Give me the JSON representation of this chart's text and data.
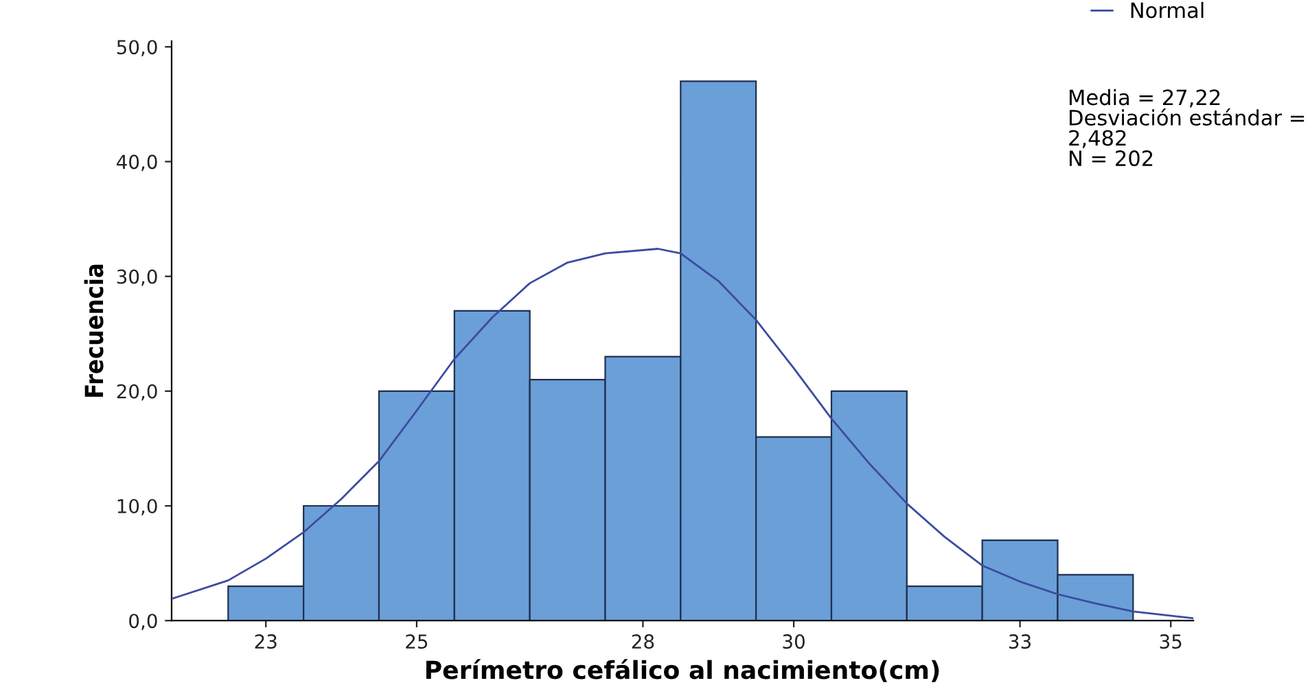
{
  "chart_data": {
    "type": "histogram",
    "xlabel": "Perímetro cefálico al nacimiento(cm)",
    "ylabel": "Frecuencia",
    "bins": [
      22.5,
      23.5,
      24.5,
      25.5,
      26.5,
      27.5,
      28.5,
      29.5,
      30.5,
      31.5,
      32.5,
      33.5,
      34.5
    ],
    "values": [
      3,
      10,
      20,
      27,
      21,
      23,
      47,
      16,
      20,
      3,
      7,
      4
    ],
    "color": "#6a9fd8",
    "series": [
      {
        "name": "Normal",
        "type": "line",
        "color": "#3b4ba0",
        "x": [
          21.75,
          22.5,
          23.0,
          23.5,
          24.0,
          24.5,
          25.0,
          25.5,
          26.0,
          26.5,
          27.0,
          27.5,
          28.2,
          28.5,
          29.0,
          29.5,
          30.0,
          30.5,
          31.0,
          31.5,
          32.0,
          32.5,
          33.0,
          33.5,
          34.0,
          34.5,
          35.3
        ],
        "values": [
          1.9,
          3.5,
          5.4,
          7.7,
          10.6,
          13.9,
          18.3,
          22.8,
          26.4,
          29.4,
          31.2,
          32.0,
          32.4,
          32.0,
          29.6,
          26.2,
          22.0,
          17.6,
          13.7,
          10.2,
          7.3,
          4.8,
          3.4,
          2.3,
          1.5,
          0.8,
          0.2
        ]
      }
    ],
    "annotations": [
      "Media = 27,22\nDesviación estándar =\n2,482\nN = 202"
    ],
    "xlim": [
      21.75,
      35.3
    ],
    "ylim": [
      0,
      50.5
    ],
    "xticks": [
      23,
      25,
      28,
      30,
      33,
      35
    ],
    "yticks": [
      {
        "value": 0,
        "label": "0,0"
      },
      {
        "value": 10,
        "label": "10,0"
      },
      {
        "value": 20,
        "label": "20,0"
      },
      {
        "value": 30,
        "label": "30,0"
      },
      {
        "value": 40,
        "label": "40,0"
      },
      {
        "value": 50,
        "label": "50,0"
      }
    ],
    "legend": "top right",
    "grid": false
  }
}
